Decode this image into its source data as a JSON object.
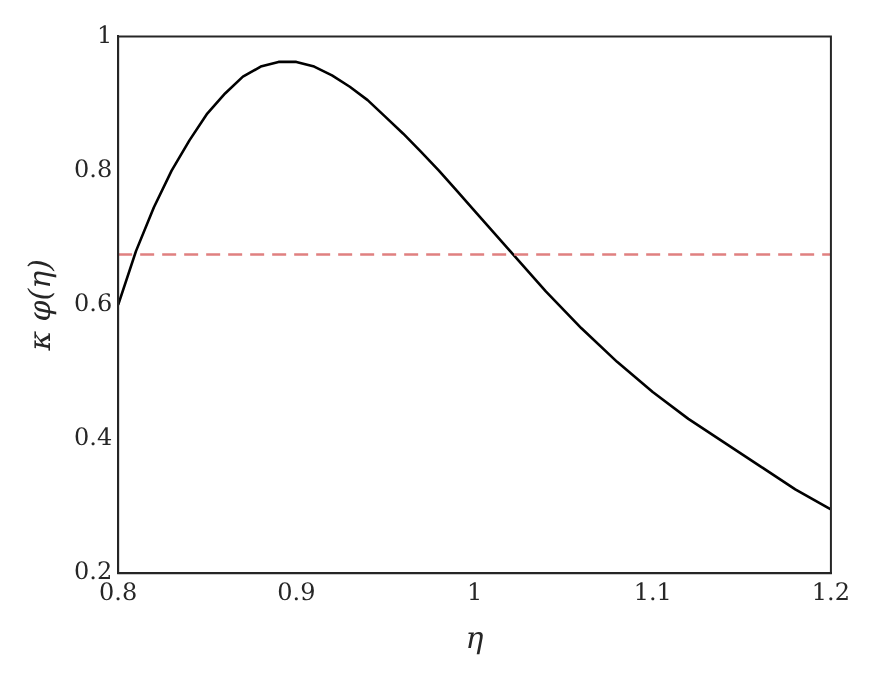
{
  "chart_data": {
    "type": "line",
    "xlabel": "η",
    "ylabel": "κ φ(η)",
    "series": [
      {
        "color": "#000000",
        "x": [
          0.8,
          0.81,
          0.82,
          0.83,
          0.84,
          0.85,
          0.86,
          0.87,
          0.88,
          0.89,
          0.9,
          0.91,
          0.92,
          0.93,
          0.94,
          0.95,
          0.96,
          0.97,
          0.98,
          0.99,
          1.0,
          1.02,
          1.04,
          1.06,
          1.08,
          1.1,
          1.12,
          1.14,
          1.16,
          1.18,
          1.2
        ],
        "values": [
          0.6,
          0.68,
          0.745,
          0.8,
          0.845,
          0.885,
          0.915,
          0.94,
          0.955,
          0.962,
          0.962,
          0.955,
          0.942,
          0.925,
          0.905,
          0.88,
          0.855,
          0.828,
          0.8,
          0.77,
          0.74,
          0.68,
          0.62,
          0.565,
          0.515,
          0.47,
          0.43,
          0.395,
          0.36,
          0.325,
          0.295
        ]
      }
    ],
    "ref_lines": [
      {
        "axis": "y",
        "value": 0.675,
        "color": "#e08080",
        "line_style": "dashed"
      }
    ],
    "xlim": [
      0.8,
      1.2
    ],
    "ylim": [
      0.2,
      1
    ],
    "xticks": [
      0.8,
      0.9,
      1,
      1.1,
      1.2
    ],
    "yticks": [
      0.2,
      0.4,
      0.6,
      0.8,
      1
    ],
    "grid": false,
    "legend": false,
    "marker": "none",
    "line_style": "solid"
  }
}
